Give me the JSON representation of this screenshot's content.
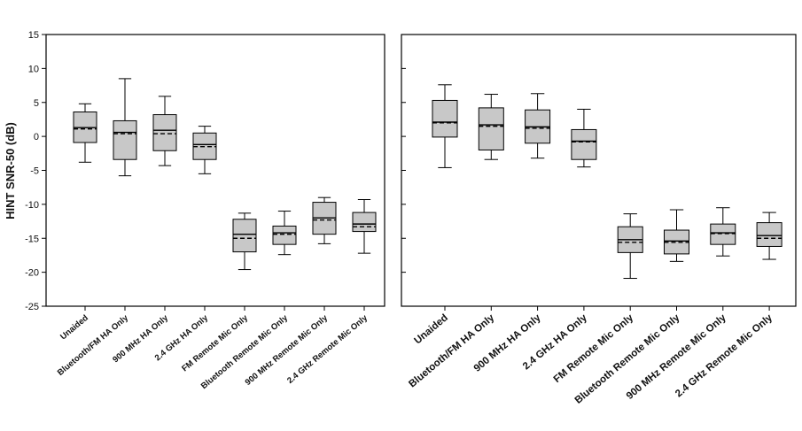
{
  "chart_data": {
    "type": "boxplot",
    "ylabel": "HINT SNR-50 (dB)",
    "ylim": [
      -25,
      15
    ],
    "yticks": [
      15,
      10,
      5,
      0,
      -5,
      -10,
      -15,
      -20,
      -25
    ],
    "panels": [
      {
        "name": "left",
        "categories": [
          "Unaided",
          "Bluetooth/FM HA Only",
          "900 MHz HA Only",
          "2.4 GHz HA Only",
          "FM Remote Mic Only",
          "Bluetooth Remote Mic Only",
          "900 MHz Remote Mic Only",
          "2.4 GHz Remote Mic Only"
        ],
        "boxes": [
          {
            "min": -3.8,
            "q1": -0.9,
            "median": 1.3,
            "mean": 1.1,
            "q3": 3.6,
            "max": 4.8
          },
          {
            "min": -5.8,
            "q1": -3.4,
            "median": 0.6,
            "mean": 0.4,
            "q3": 2.3,
            "max": 8.5
          },
          {
            "min": -4.3,
            "q1": -2.1,
            "median": 0.9,
            "mean": 0.4,
            "q3": 3.2,
            "max": 5.9
          },
          {
            "min": -5.5,
            "q1": -3.4,
            "median": -1.2,
            "mean": -1.5,
            "q3": 0.5,
            "max": 1.5
          },
          {
            "min": -19.6,
            "q1": -17.0,
            "median": -14.4,
            "mean": -15.0,
            "q3": -12.2,
            "max": -11.3
          },
          {
            "min": -17.4,
            "q1": -15.9,
            "median": -14.2,
            "mean": -14.4,
            "q3": -13.2,
            "max": -11.0
          },
          {
            "min": -15.8,
            "q1": -14.4,
            "median": -12.0,
            "mean": -12.3,
            "q3": -9.7,
            "max": -9.0
          },
          {
            "min": -17.2,
            "q1": -14.0,
            "median": -12.9,
            "mean": -13.3,
            "q3": -11.2,
            "max": -9.3
          }
        ]
      },
      {
        "name": "right",
        "categories": [
          "Unaided",
          "Bluetooth/FM HA Only",
          "900 MHz HA Only",
          "2.4 GHz HA Only",
          "FM Remote Mic Only",
          "Bluetooth Remote Mic Only",
          "900 MHz Remote Mic Only",
          "2.4 GHz Remote Mic Only"
        ],
        "boxes": [
          {
            "min": -4.6,
            "q1": -0.1,
            "median": 2.1,
            "mean": 2.0,
            "q3": 5.3,
            "max": 7.6
          },
          {
            "min": -3.4,
            "q1": -2.0,
            "median": 1.7,
            "mean": 1.5,
            "q3": 4.2,
            "max": 6.2
          },
          {
            "min": -3.2,
            "q1": -1.0,
            "median": 1.4,
            "mean": 1.2,
            "q3": 3.9,
            "max": 6.3
          },
          {
            "min": -4.5,
            "q1": -3.4,
            "median": -0.7,
            "mean": -0.8,
            "q3": 1.0,
            "max": 4.0
          },
          {
            "min": -20.9,
            "q1": -17.1,
            "median": -15.2,
            "mean": -15.6,
            "q3": -13.3,
            "max": -11.4
          },
          {
            "min": -18.4,
            "q1": -17.3,
            "median": -15.4,
            "mean": -15.6,
            "q3": -13.8,
            "max": -10.8
          },
          {
            "min": -17.6,
            "q1": -15.9,
            "median": -14.2,
            "mean": -14.3,
            "q3": -12.9,
            "max": -10.5
          },
          {
            "min": -18.1,
            "q1": -16.2,
            "median": -14.6,
            "mean": -15.0,
            "q3": -12.7,
            "max": -11.2
          }
        ]
      }
    ]
  }
}
